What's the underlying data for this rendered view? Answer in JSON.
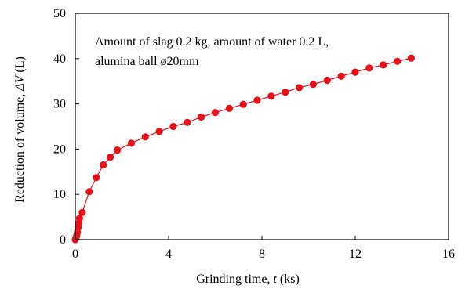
{
  "chart_data": {
    "type": "scatter",
    "xlabel": "Grinding time, t (ks)",
    "xlabel_parts": {
      "prefix": "Grinding time, ",
      "var": "t",
      "suffix": " (ks)"
    },
    "ylabel": "Reduction of volume, ΔV (L)",
    "ylabel_parts": {
      "prefix": "Reduction of volume, ",
      "var": "ΔV",
      "suffix": " (L)"
    },
    "xlim": [
      0,
      16
    ],
    "ylim": [
      0,
      50
    ],
    "xticks": [
      0,
      4,
      8,
      12,
      16
    ],
    "yticks": [
      0,
      10,
      20,
      30,
      40,
      50
    ],
    "grid": false,
    "annotation_lines": [
      "Amount of slag 0.2 kg, amount of water 0.2 L,",
      "alumina ball ø20mm"
    ],
    "marker_color": "#e8101a",
    "line_color": "#e8101a",
    "series": [
      {
        "x": [
          0.0,
          0.03,
          0.06,
          0.09,
          0.12,
          0.15,
          0.18,
          0.3,
          0.6,
          0.9,
          1.2,
          1.5,
          1.8,
          2.4,
          3.0,
          3.6,
          4.2,
          4.8,
          5.4,
          6.0,
          6.6,
          7.2,
          7.8,
          8.4,
          9.0,
          9.6,
          10.2,
          10.8,
          11.4,
          12.0,
          12.6,
          13.2,
          13.8,
          14.4
        ],
        "y": [
          0.0,
          0.4,
          0.9,
          1.6,
          2.7,
          3.7,
          4.7,
          6.0,
          10.6,
          13.7,
          16.5,
          18.2,
          19.8,
          21.3,
          22.7,
          23.9,
          25.0,
          25.9,
          27.1,
          28.1,
          29.0,
          29.9,
          30.8,
          31.7,
          32.6,
          33.6,
          34.3,
          35.2,
          36.1,
          37.0,
          37.9,
          38.6,
          39.4,
          40.1
        ]
      }
    ]
  }
}
